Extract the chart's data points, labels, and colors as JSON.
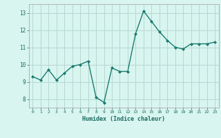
{
  "x": [
    0,
    1,
    2,
    3,
    4,
    5,
    6,
    7,
    8,
    9,
    10,
    11,
    12,
    13,
    14,
    15,
    16,
    17,
    18,
    19,
    20,
    21,
    22,
    23
  ],
  "y": [
    9.3,
    9.1,
    9.7,
    9.1,
    9.5,
    9.9,
    10.0,
    10.2,
    8.1,
    7.8,
    9.8,
    9.6,
    9.6,
    11.8,
    13.1,
    12.5,
    11.9,
    11.4,
    11.0,
    10.9,
    11.2,
    11.2,
    11.2,
    11.3
  ],
  "line_color": "#1a7a6e",
  "marker": "D",
  "marker_size": 2.0,
  "bg_color": "#d8f5f0",
  "grid_color": "#b8d8d2",
  "xlabel": "Humidex (Indice chaleur)",
  "xlim": [
    -0.5,
    23.5
  ],
  "ylim": [
    7.5,
    13.5
  ],
  "yticks": [
    8,
    9,
    10,
    11,
    12,
    13
  ],
  "xticks": [
    0,
    1,
    2,
    3,
    4,
    5,
    6,
    7,
    8,
    9,
    10,
    11,
    12,
    13,
    14,
    15,
    16,
    17,
    18,
    19,
    20,
    21,
    22,
    23
  ],
  "xtick_labels": [
    "0",
    "1",
    "2",
    "3",
    "4",
    "5",
    "6",
    "7",
    "8",
    "9",
    "10",
    "11",
    "12",
    "13",
    "14",
    "15",
    "16",
    "17",
    "18",
    "19",
    "20",
    "21",
    "22",
    "23"
  ],
  "linewidth": 1.0
}
